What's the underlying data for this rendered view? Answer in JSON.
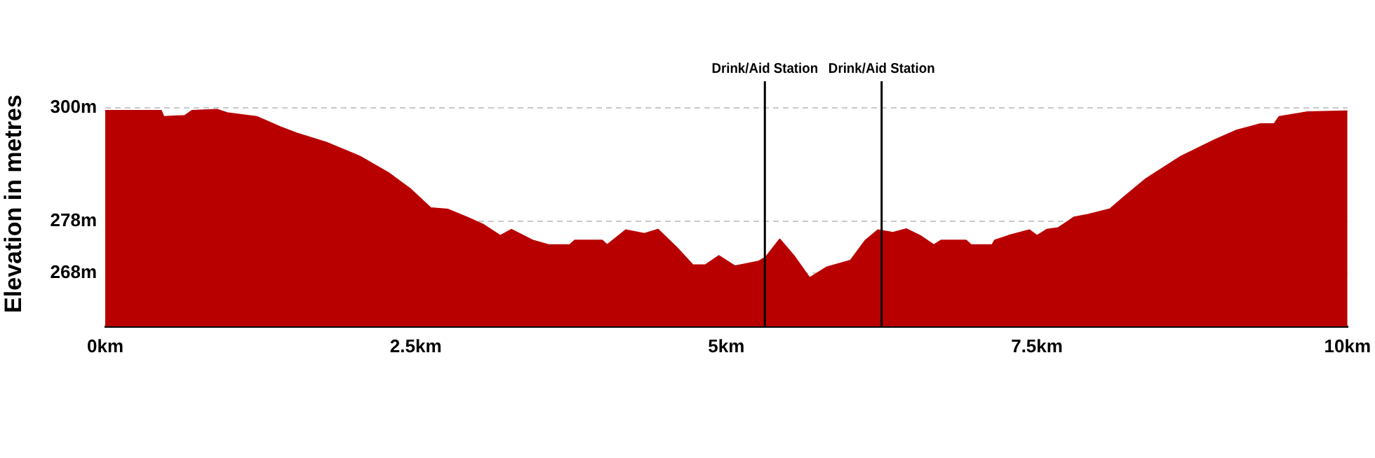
{
  "chart_data": {
    "type": "area",
    "ylabel": "Elevation in metres",
    "x": [
      0,
      0.45,
      0.47,
      0.64,
      0.7,
      0.9,
      0.99,
      1.22,
      1.41,
      1.54,
      1.78,
      2.05,
      2.28,
      2.46,
      2.62,
      2.76,
      2.91,
      3.04,
      3.18,
      3.27,
      3.44,
      3.57,
      3.74,
      3.78,
      4.0,
      4.04,
      4.19,
      4.34,
      4.45,
      4.6,
      4.73,
      4.83,
      4.94,
      5.07,
      5.26,
      5.32,
      5.43,
      5.55,
      5.67,
      5.81,
      6.0,
      6.12,
      6.22,
      6.34,
      6.45,
      6.56,
      6.67,
      6.73,
      6.93,
      6.97,
      7.14,
      7.16,
      7.27,
      7.44,
      7.5,
      7.58,
      7.67,
      7.8,
      7.91,
      8.09,
      8.21,
      8.37,
      8.51,
      8.66,
      8.93,
      9.11,
      9.3,
      9.41,
      9.45,
      9.67,
      9.98,
      10
    ],
    "series": [
      {
        "color": "#b90000",
        "values": [
          299.5,
          299.5,
          298.3,
          298.5,
          299.5,
          299.7,
          299,
          298.3,
          296.3,
          295.1,
          293.3,
          290.6,
          287.4,
          284.2,
          280.6,
          280.3,
          278.8,
          277.4,
          275.2,
          276.4,
          274.3,
          273.4,
          273.4,
          274.3,
          274.3,
          273.4,
          276.3,
          275.6,
          276.4,
          272.9,
          269.5,
          269.5,
          271.3,
          269.3,
          270.2,
          271.1,
          274.5,
          271.1,
          267,
          269.1,
          270.4,
          274.3,
          276.3,
          275.8,
          276.5,
          275.2,
          273.4,
          274.3,
          274.3,
          273.4,
          273.4,
          274.3,
          275.2,
          276.3,
          275.2,
          276.4,
          276.7,
          278.8,
          279.3,
          280.4,
          282.9,
          286.1,
          288.3,
          290.6,
          293.8,
          295.7,
          296.9,
          296.9,
          298.3,
          299.2,
          299.4,
          299.4
        ]
      }
    ],
    "xlim": [
      0,
      10
    ],
    "xticks": [
      {
        "value": 0,
        "label": "0km"
      },
      {
        "value": 2.5,
        "label": "2.5km"
      },
      {
        "value": 5,
        "label": "5km"
      },
      {
        "value": 7.5,
        "label": "7.5km"
      },
      {
        "value": 10,
        "label": "10km"
      }
    ],
    "ylim": [
      257.6,
      305.2
    ],
    "yticks": [
      {
        "value": 268,
        "label": "268m"
      },
      {
        "value": 278,
        "label": "278m"
      },
      {
        "value": 300,
        "label": "300m"
      }
    ],
    "ref_lines": [
      {
        "axis": "x",
        "value": 5.31,
        "label": "Drink/Aid Station",
        "color": "#000000"
      },
      {
        "axis": "x",
        "value": 6.25,
        "label": "Drink/Aid Station",
        "color": "#000000"
      }
    ],
    "grid": "y",
    "legend": false,
    "marker": "none"
  }
}
